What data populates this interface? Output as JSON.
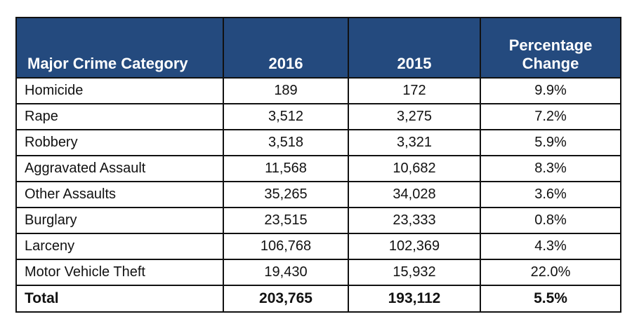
{
  "table": {
    "headers": {
      "category": "Major Crime Category",
      "year_2016": "2016",
      "year_2015": "2015",
      "pct_change_line1": "Percentage",
      "pct_change_line2": "Change"
    },
    "rows": [
      {
        "category": "Homicide",
        "y2016": "189",
        "y2015": "172",
        "pct": "9.9%"
      },
      {
        "category": "Rape",
        "y2016": "3,512",
        "y2015": "3,275",
        "pct": "7.2%"
      },
      {
        "category": "Robbery",
        "y2016": "3,518",
        "y2015": "3,321",
        "pct": "5.9%"
      },
      {
        "category": "Aggravated Assault",
        "y2016": "11,568",
        "y2015": "10,682",
        "pct": "8.3%"
      },
      {
        "category": "Other Assaults",
        "y2016": "35,265",
        "y2015": "34,028",
        "pct": "3.6%"
      },
      {
        "category": "Burglary",
        "y2016": "23,515",
        "y2015": "23,333",
        "pct": "0.8%"
      },
      {
        "category": "Larceny",
        "y2016": "106,768",
        "y2015": "102,369",
        "pct": "4.3%"
      },
      {
        "category": "Motor Vehicle Theft",
        "y2016": "19,430",
        "y2015": "15,932",
        "pct": "22.0%"
      }
    ],
    "total": {
      "category": "Total",
      "y2016": "203,765",
      "y2015": "193,112",
      "pct": "5.5%"
    }
  },
  "colors": {
    "header_bg": "#244a7e",
    "header_text": "#ffffff",
    "border": "#111111"
  }
}
